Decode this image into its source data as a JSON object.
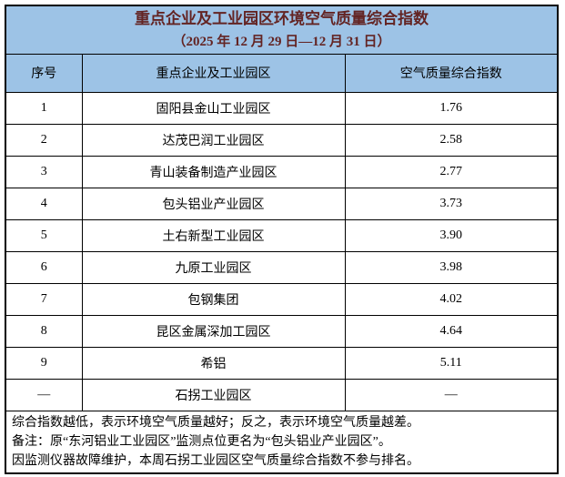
{
  "table": {
    "title_line1": "重点企业及工业园区环境空气质量综合指数",
    "title_line2": "（2025 年 12 月 29 日—12 月 31 日）",
    "columns": {
      "no": "序号",
      "name": "重点企业及工业园区",
      "value": "空气质量综合指数"
    },
    "rows": [
      {
        "no": "1",
        "name": "固阳县金山工业园区",
        "value": "1.76"
      },
      {
        "no": "2",
        "name": "达茂巴润工业园区",
        "value": "2.58"
      },
      {
        "no": "3",
        "name": "青山装备制造产业园区",
        "value": "2.77"
      },
      {
        "no": "4",
        "name": "包头铝业产业园区",
        "value": "3.73"
      },
      {
        "no": "5",
        "name": "土右新型工业园区",
        "value": "3.90"
      },
      {
        "no": "6",
        "name": "九原工业园区",
        "value": "3.98"
      },
      {
        "no": "7",
        "name": "包钢集团",
        "value": "4.02"
      },
      {
        "no": "8",
        "name": "昆区金属深加工园区",
        "value": "4.64"
      },
      {
        "no": "9",
        "name": "希铝",
        "value": "5.11"
      },
      {
        "no": "—",
        "name": "石拐工业园区",
        "value": "—"
      }
    ],
    "notes": [
      "综合指数越低，表示环境空气质量越好；反之，表示环境空气质量越差。",
      "备注：原“东河铝业工业园区”监测点位更名为“包头铝业产业园区”。",
      "因监测仪器故障维护，本周石拐工业园区空气质量综合指数不参与排名。"
    ],
    "colors": {
      "header_bg": "#9DC3E6",
      "title_text": "#632423",
      "border": "#000000"
    }
  }
}
